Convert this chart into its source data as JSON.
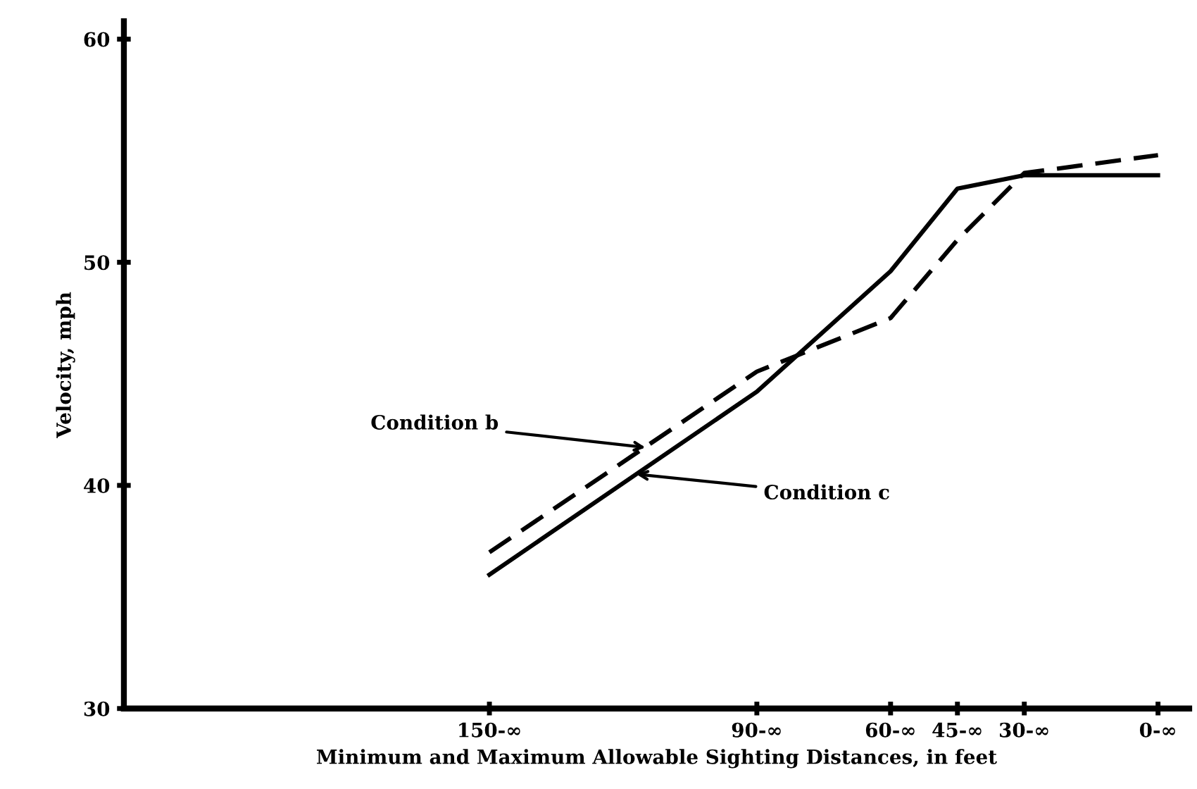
{
  "chart_data": {
    "type": "line",
    "xlabel": "Minimum and Maximum Allowable Sighting Distances, in feet",
    "ylabel": "Velocity, mph",
    "x": [
      150,
      90,
      60,
      45,
      30,
      0
    ],
    "series": [
      {
        "color": "#000000",
        "line_style": "dashed",
        "values": [
          37.0,
          45.1,
          47.5,
          51.0,
          54.0,
          54.8
        ]
      },
      {
        "color": "#000000",
        "line_style": "solid",
        "values": [
          36.0,
          44.2,
          49.6,
          53.3,
          53.9,
          53.9
        ]
      }
    ],
    "xlim": [
      232,
      -7
    ],
    "ylim": [
      30,
      60.8
    ],
    "xticks": [
      {
        "value": 150,
        "label": "150-∞"
      },
      {
        "value": 90,
        "label": "90-∞"
      },
      {
        "value": 60,
        "label": "60-∞"
      },
      {
        "value": 45,
        "label": "45-∞"
      },
      {
        "value": 30,
        "label": "30-∞"
      },
      {
        "value": 0,
        "label": "0-∞"
      }
    ],
    "yticks": [
      30,
      40,
      50,
      60
    ],
    "grid": false,
    "legend": false,
    "marker": "none",
    "annotations": [
      {
        "text": "Condition b",
        "x": 115,
        "y": 41.7
      },
      {
        "text": "Condition c",
        "x": 117,
        "y": 40.5
      }
    ]
  }
}
